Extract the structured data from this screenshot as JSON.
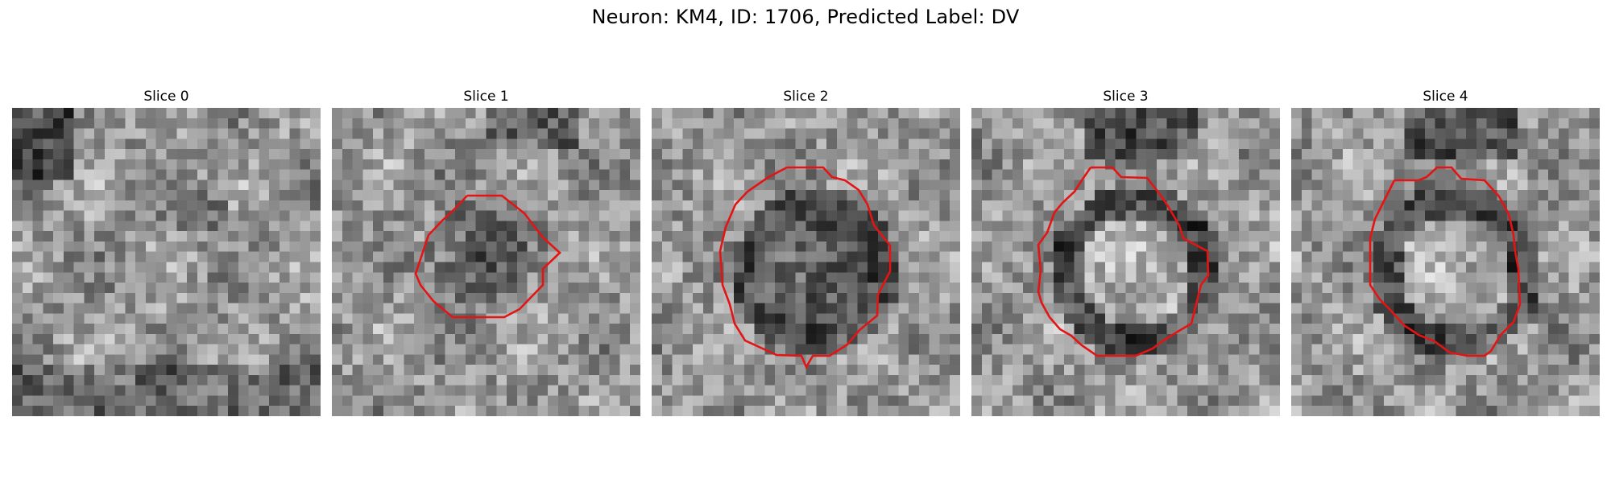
{
  "figure": {
    "title": "Neuron: KM4, ID: 1706, Predicted Label: DV"
  },
  "panels": [
    {
      "title": "Slice 0",
      "has_contour": false,
      "cell": "none"
    },
    {
      "title": "Slice 1",
      "has_contour": true,
      "cell": "dark"
    },
    {
      "title": "Slice 2",
      "has_contour": true,
      "cell": "dark-large"
    },
    {
      "title": "Slice 3",
      "has_contour": true,
      "cell": "bright-ring"
    },
    {
      "title": "Slice 4",
      "has_contour": true,
      "cell": "bright-ring"
    }
  ],
  "colors": {
    "contour": "#e41414",
    "colormap": "gray",
    "background": "#ffffff"
  }
}
